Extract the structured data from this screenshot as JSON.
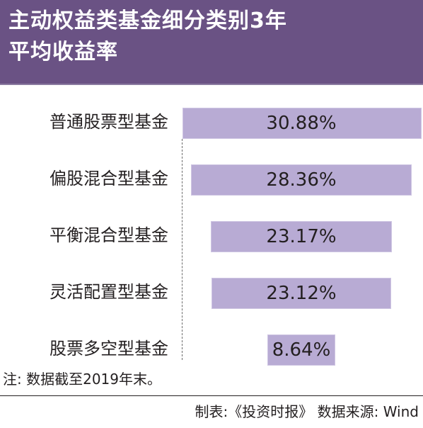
{
  "header": {
    "title_line1": "主动权益类基金细分类别3年",
    "title_line2": "平均收益率"
  },
  "chart_data": {
    "type": "bar",
    "orientation": "horizontal",
    "title": "主动权益类基金细分类别3年平均收益率",
    "categories": [
      "普通股票型基金",
      "偏股混合型基金",
      "平衡混合型基金",
      "灵活配置型基金",
      "股票多空型基金"
    ],
    "values": [
      30.88,
      28.36,
      23.17,
      23.12,
      8.64
    ],
    "value_labels": [
      "30.88%",
      "28.36%",
      "23.17%",
      "23.12%",
      "8.64%"
    ],
    "unit": "%",
    "bar_color": "#b8abd4",
    "grid": false,
    "legend": "none"
  },
  "footer": {
    "note": "注: 数据截至2019年末。",
    "source": "制表:《投资时报》 数据来源: Wind"
  },
  "colors": {
    "header_bg": "#6a5284",
    "header_text": "#ffffff",
    "bar": "#b8abd4"
  }
}
